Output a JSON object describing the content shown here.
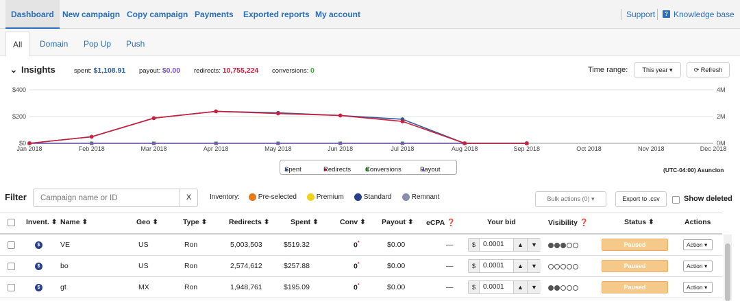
{
  "nav": {
    "items": [
      "Dashboard",
      "New campaign",
      "Copy campaign",
      "Payments",
      "Exported reports",
      "My account"
    ],
    "support": "Support",
    "knowledge": "Knowledge base"
  },
  "tabs": [
    "All",
    "Domain",
    "Pop Up",
    "Push"
  ],
  "insights": {
    "title": "Insights",
    "spent_label": "spent:",
    "spent": "$1,108.91",
    "payout_label": "payout:",
    "payout": "$0.00",
    "redirects_label": "redirects:",
    "redirects": "10,755,224",
    "conversions_label": "conversions:",
    "conversions": "0",
    "time_range_label": "Time range:",
    "time_range_value": "This year",
    "refresh": "Refresh",
    "timezone": "(UTC-04:00) Asuncion"
  },
  "colors": {
    "spent": "#2b5d9b",
    "redirects": "#cc1f3d",
    "conversions": "#3aaa35",
    "payout": "#7b4fc2",
    "paused": "#f5c98a"
  },
  "chart_data": {
    "type": "line",
    "x": [
      "Jan 2018",
      "Feb 2018",
      "Mar 2018",
      "Apr 2018",
      "May 2018",
      "Jun 2018",
      "Jul 2018",
      "Aug 2018",
      "Sep 2018",
      "Oct 2018",
      "Nov 2018",
      "Dec 2018"
    ],
    "left_axis": {
      "ticks": [
        "$400",
        "$200",
        "$0"
      ],
      "ylim": [
        0,
        400
      ]
    },
    "right_axis": {
      "ticks": [
        "4M",
        "2M",
        "0M"
      ],
      "ylim": [
        0,
        4000000
      ]
    },
    "series": [
      {
        "name": "Spent",
        "axis": "left",
        "values": [
          0,
          49,
          188,
          239,
          228,
          208,
          180,
          0,
          0,
          null,
          null,
          null
        ]
      },
      {
        "name": "Redirects",
        "axis": "right",
        "values": [
          0,
          490000,
          1880000,
          2390000,
          2230000,
          2080000,
          1640000,
          0,
          0,
          null,
          null,
          null
        ]
      },
      {
        "name": "Conversions",
        "axis": "left",
        "values": [
          0,
          0,
          0,
          0,
          0,
          0,
          0,
          0,
          0,
          null,
          null,
          null
        ]
      },
      {
        "name": "Payout",
        "axis": "left",
        "values": [
          0,
          0,
          0,
          0,
          0,
          0,
          0,
          0,
          0,
          null,
          null,
          null
        ]
      }
    ]
  },
  "filter": {
    "label": "Filter",
    "placeholder": "Campaign name or ID",
    "clear": "X",
    "inventory_label": "Inventory:",
    "inventory": [
      "Pre-selected",
      "Premium",
      "Standard",
      "Remnant"
    ],
    "bulk": "Bulk actions (0)",
    "export": "Export to .csv",
    "show_deleted": "Show deleted"
  },
  "table": {
    "headers": [
      "Invent.",
      "Name",
      "Geo",
      "Type",
      "Redirects",
      "Spent",
      "Conv",
      "Payout",
      "eCPA",
      "Your bid",
      "Visibility",
      "Status",
      "Actions"
    ],
    "rows": [
      {
        "name": "VE",
        "geo": "US",
        "type": "Ron",
        "redirects": "5,003,503",
        "spent": "$519.32",
        "conv": "0",
        "conv_mark": "*",
        "payout": "$0.00",
        "ecpa": "—",
        "bid_cur": "$",
        "bid": "0.0001",
        "visibility": 3,
        "status": "Paused",
        "action": "Action"
      },
      {
        "name": "bo",
        "geo": "US",
        "type": "Ron",
        "redirects": "2,574,612",
        "spent": "$257.88",
        "conv": "0",
        "conv_mark": "*",
        "payout": "$0.00",
        "ecpa": "—",
        "bid_cur": "$",
        "bid": "0.0001",
        "visibility": 0,
        "status": "Paused",
        "action": "Action"
      },
      {
        "name": "gt",
        "geo": "MX",
        "type": "Ron",
        "redirects": "1,948,761",
        "spent": "$195.09",
        "conv": "0",
        "conv_mark": "*",
        "payout": "$0.00",
        "ecpa": "—",
        "bid_cur": "$",
        "bid": "0.0001",
        "visibility": 2,
        "status": "Paused",
        "action": "Action"
      }
    ]
  }
}
